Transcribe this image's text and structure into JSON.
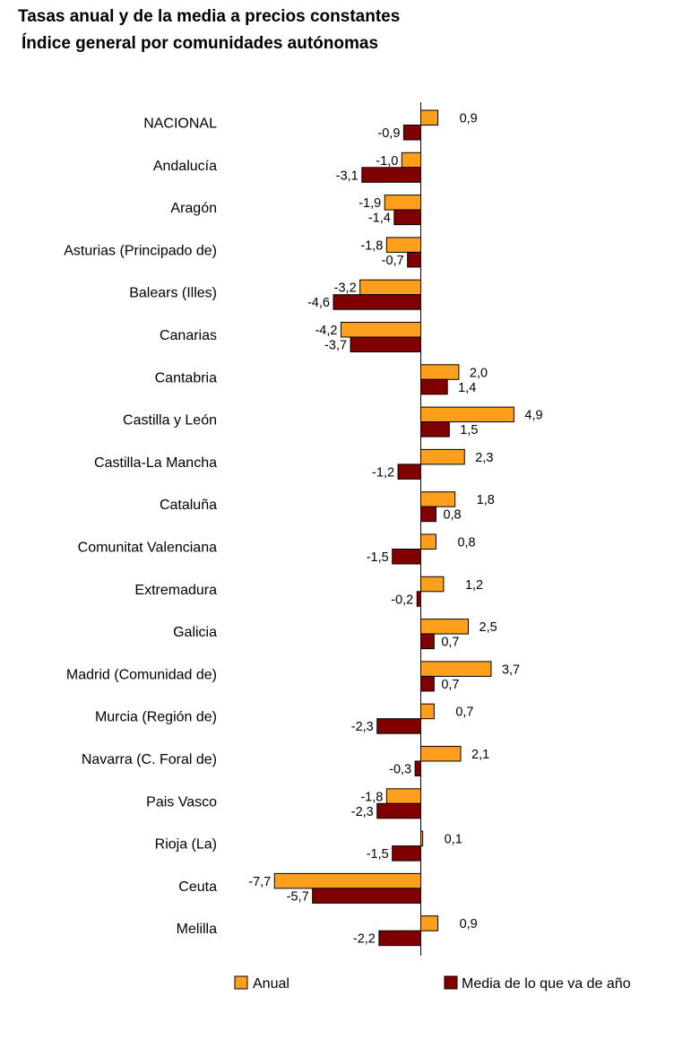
{
  "chart_data": {
    "type": "bar",
    "orientation": "horizontal",
    "title": "Tasas anual y de la media a precios constantes",
    "subtitle": "Índice general por comunidades autónomas",
    "categories": [
      "NACIONAL",
      "Andalucía",
      "Aragón",
      "Asturias (Principado de)",
      "Balears (Illes)",
      "Canarias",
      "Cantabria",
      "Castilla y León",
      "Castilla-La Mancha",
      "Cataluña",
      "Comunitat Valenciana",
      "Extremadura",
      "Galicia",
      "Madrid (Comunidad de)",
      "Murcia (Región de)",
      "Navarra (C. Foral de)",
      "Pais Vasco",
      "Rioja (La)",
      "Ceuta",
      "Melilla"
    ],
    "series": [
      {
        "name": "Anual",
        "color": "#ff9f1c",
        "values": [
          0.9,
          -1.0,
          -1.9,
          -1.8,
          -3.2,
          -4.2,
          2.0,
          4.9,
          2.3,
          1.8,
          0.8,
          1.2,
          2.5,
          3.7,
          0.7,
          2.1,
          -1.8,
          0.1,
          -7.7,
          0.9
        ],
        "labels": [
          "0,9",
          "-1,0",
          "-1,9",
          "-1,8",
          "-3,2",
          "-4,2",
          "2,0",
          "4,9",
          "2,3",
          "1,8",
          "0,8",
          "1,2",
          "2,5",
          "3,7",
          "0,7",
          "2,1",
          "-1,8",
          "0,1",
          "-7,7",
          "0,9"
        ]
      },
      {
        "name": "Media de lo que va de año",
        "color": "#800000",
        "values": [
          -0.9,
          -3.1,
          -1.4,
          -0.7,
          -4.6,
          -3.7,
          1.4,
          1.5,
          -1.2,
          0.8,
          -1.5,
          -0.2,
          0.7,
          0.7,
          -2.3,
          -0.3,
          -2.3,
          -1.5,
          -5.7,
          -2.2
        ],
        "labels": [
          "-0,9",
          "-3,1",
          "-1,4",
          "-0,7",
          "-4,6",
          "-3,7",
          "1,4",
          "1,5",
          "-1,2",
          "0,8",
          "-1,5",
          "-0,2",
          "0,7",
          "0,7",
          "-2,3",
          "-0,3",
          "-2,3",
          "-1,5",
          "-5,7",
          "-2,2"
        ]
      }
    ],
    "legend_position": "bottom",
    "grid": false
  }
}
